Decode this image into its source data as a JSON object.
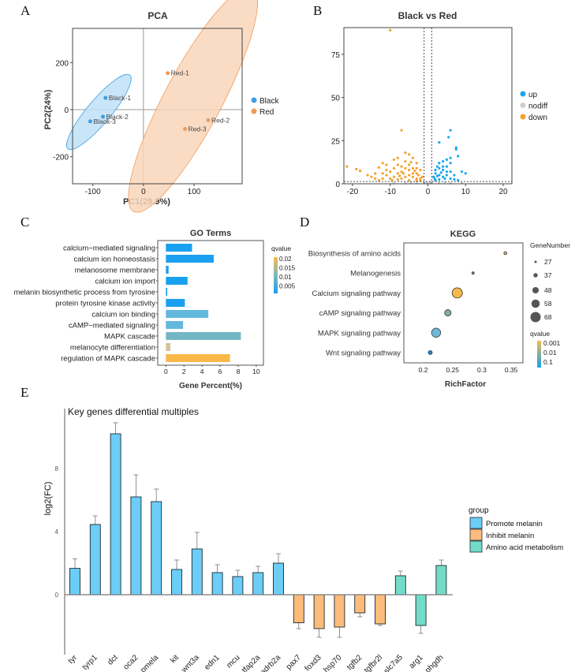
{
  "panel_labels": [
    "A",
    "B",
    "C",
    "D",
    "E"
  ],
  "chart_data": [
    {
      "type": "scatter",
      "title": "PCA",
      "xlabel": "PC1(29.9%)",
      "ylabel": "PC2(24%)",
      "xlim": [
        -140,
        195
      ],
      "ylim": [
        -315,
        345
      ],
      "xticks": [
        -100,
        0,
        100
      ],
      "yticks": [
        -200,
        0,
        200
      ],
      "legend": [
        {
          "name": "Black",
          "color": "#3e9fe0"
        },
        {
          "name": "Red",
          "color": "#f29a55"
        }
      ],
      "points": [
        {
          "label": "Black-1",
          "group": "Black",
          "x": -75,
          "y": 50
        },
        {
          "label": "Black-2",
          "group": "Black",
          "x": -80,
          "y": -30
        },
        {
          "label": "Black-3",
          "group": "Black",
          "x": -105,
          "y": -50
        },
        {
          "label": "Red-1",
          "group": "Red",
          "x": 48,
          "y": 155
        },
        {
          "label": "Red-2",
          "group": "Red",
          "x": 128,
          "y": -45
        },
        {
          "label": "Red-3",
          "group": "Red",
          "x": 82,
          "y": -82
        }
      ],
      "ellipses": [
        {
          "group": "Black",
          "cx": -88,
          "cy": -10,
          "rx": 95,
          "ry": 24,
          "angle": -50,
          "fill": "#bfe0f7"
        },
        {
          "group": "Red",
          "cx": 98,
          "cy": 42,
          "rx": 250,
          "ry": 58,
          "angle": -62,
          "fill": "#f9d6bb"
        }
      ]
    },
    {
      "type": "scatter",
      "title": "Black vs Red",
      "xlim": [
        -22.3,
        22.3
      ],
      "ylim": [
        0,
        90.5
      ],
      "xticks": [
        -20,
        -10,
        0,
        10,
        20
      ],
      "yticks": [
        0,
        25,
        50,
        75
      ],
      "thresholds": {
        "x": [
          -1,
          1
        ],
        "y": 1.3
      },
      "legend": [
        {
          "name": "up",
          "color": "#1aa7ec"
        },
        {
          "name": "nodiff",
          "color": "#d0d0d0"
        },
        {
          "name": "down",
          "color": "#f5a030"
        }
      ],
      "series": [
        {
          "name": "down",
          "points": [
            [
              -10,
              89
            ],
            [
              -7,
              31
            ],
            [
              -21.5,
              10
            ],
            [
              -19,
              8.5
            ],
            [
              -18,
              7.5
            ],
            [
              -14,
              6
            ],
            [
              -13,
              9.5
            ],
            [
              -12,
              12
            ],
            [
              -11,
              8
            ],
            [
              -9,
              14
            ],
            [
              -8,
              15
            ],
            [
              -6,
              18
            ],
            [
              -5,
              17
            ],
            [
              -4,
              15
            ],
            [
              -3,
              12
            ],
            [
              -2,
              8
            ],
            [
              -1.5,
              4
            ],
            [
              -7,
              10
            ],
            [
              -6,
              9
            ],
            [
              -5,
              11
            ],
            [
              -4,
              9
            ],
            [
              -3,
              6
            ],
            [
              -2,
              3
            ],
            [
              -8,
              6
            ],
            [
              -9,
              4
            ],
            [
              -10,
              3
            ],
            [
              -11,
              5
            ],
            [
              -12,
              3
            ],
            [
              -13,
              2
            ],
            [
              -14,
              3
            ],
            [
              -15,
              4
            ],
            [
              -6,
              4
            ],
            [
              -5,
              5
            ],
            [
              -4,
              4
            ],
            [
              -3,
              3
            ],
            [
              -7,
              3
            ],
            [
              -8,
              2.5
            ],
            [
              -5,
              2
            ],
            [
              -3,
              2
            ],
            [
              -2,
              1.8
            ],
            [
              -16,
              5
            ],
            [
              -12,
              6
            ],
            [
              -10,
              7
            ],
            [
              -7,
              7
            ],
            [
              -6,
              13
            ],
            [
              -4,
              6
            ],
            [
              -5,
              8
            ],
            [
              -3,
              9
            ],
            [
              -9,
              9
            ],
            [
              -11,
              11
            ],
            [
              -8,
              11
            ],
            [
              -4.5,
              12.5
            ],
            [
              -2.5,
              5
            ],
            [
              -6.5,
              6
            ],
            [
              -9.5,
              2
            ],
            [
              -7.5,
              4.5
            ],
            [
              -3.5,
              7.5
            ]
          ]
        },
        {
          "name": "up",
          "points": [
            [
              6,
              31
            ],
            [
              5.5,
              27
            ],
            [
              3,
              24
            ],
            [
              7.5,
              20
            ],
            [
              7.5,
              21
            ],
            [
              8,
              16
            ],
            [
              9,
              7
            ],
            [
              10,
              6
            ],
            [
              6,
              15
            ],
            [
              5,
              14
            ],
            [
              4,
              13
            ],
            [
              3,
              12
            ],
            [
              2,
              8
            ],
            [
              1.5,
              4
            ],
            [
              2,
              6
            ],
            [
              3,
              5
            ],
            [
              4,
              8
            ],
            [
              5,
              10
            ],
            [
              6,
              12
            ],
            [
              3,
              9
            ],
            [
              4,
              4
            ],
            [
              5,
              5
            ],
            [
              6,
              3
            ],
            [
              7,
              2.5
            ],
            [
              2,
              2
            ],
            [
              3,
              2.5
            ],
            [
              8,
              2
            ],
            [
              7,
              5
            ],
            [
              4,
              10
            ],
            [
              5,
              7
            ],
            [
              2.5,
              10
            ],
            [
              6,
              7
            ],
            [
              1.8,
              3
            ],
            [
              2.5,
              4.5
            ],
            [
              3.5,
              6.5
            ],
            [
              4.5,
              3
            ]
          ]
        },
        {
          "name": "nodiff",
          "points": [
            [
              -0.5,
              0.5
            ],
            [
              0.5,
              0.8
            ],
            [
              -3,
              0.5
            ],
            [
              3,
              0.5
            ],
            [
              -6,
              0.3
            ],
            [
              6,
              0.3
            ],
            [
              -1,
              1
            ],
            [
              1,
              1
            ],
            [
              0,
              0.2
            ],
            [
              -9,
              0.2
            ],
            [
              9,
              0.4
            ],
            [
              -4.5,
              0.6
            ],
            [
              4.5,
              0.6
            ]
          ]
        }
      ]
    },
    {
      "type": "bar",
      "title": "GO Terms",
      "xlabel": "Gene Percent(%)",
      "xlim": [
        -0.9,
        10.8
      ],
      "xticks": [
        0,
        2,
        4,
        6,
        8,
        10
      ],
      "legend_title": "qvalue",
      "legend_ticks": [
        "0.02",
        "0.015",
        "0.01",
        "0.005"
      ],
      "categories": [
        "calcium−mediated signaling",
        "calcium ion homeostasis",
        "melanosome membrane",
        "calcium ion import",
        "melanin biosynthetic process from tyrosine",
        "protein tyrosine kinase activity",
        "calcium ion binding",
        "cAMP−mediated signaling",
        "MAPK cascade",
        "melanocyte differentiation",
        "regulation of MAPK cascade"
      ],
      "values": [
        2.9,
        5.3,
        0.3,
        2.4,
        0.15,
        2.1,
        4.7,
        1.9,
        8.3,
        0.5,
        7.1
      ],
      "qvalues": [
        0.002,
        0.002,
        0.002,
        0.002,
        0.002,
        0.002,
        0.008,
        0.008,
        0.011,
        0.016,
        0.021
      ],
      "colors": [
        "#1aa0f0",
        "#1aa0f0",
        "#1aa0f0",
        "#1aa0f0",
        "#1aa0f0",
        "#1aa0f0",
        "#62b9dd",
        "#62b9dd",
        "#74b7c4",
        "#d6c39c",
        "#f8b84a"
      ]
    },
    {
      "type": "scatter",
      "title": "KEGG",
      "xlabel": "RichFactor",
      "xlim": [
        0.167,
        0.37
      ],
      "xticks": [
        0.2,
        0.25,
        0.3,
        0.35
      ],
      "xtick_labels": [
        "0.2",
        "0.25",
        "0.3",
        "0.35"
      ],
      "size_legend_title": "GeneNumber",
      "size_legend": [
        27,
        37,
        48,
        58,
        68
      ],
      "color_legend_title": "qvalue",
      "color_legend": [
        "0.001",
        "0.01",
        "0.1"
      ],
      "categories": [
        "Biosynthesis of amino acids",
        "Melanogenesis",
        "Calcium signaling pathway",
        "cAMP signaling pathway",
        "MAPK signaling pathway",
        "Wnt signaling pathway"
      ],
      "richfactor": [
        0.34,
        0.285,
        0.258,
        0.242,
        0.222,
        0.212
      ],
      "gene_number": [
        30,
        27,
        68,
        48,
        62,
        35
      ],
      "colors": [
        "#d9b36a",
        "#8a8a8a",
        "#f8b84a",
        "#86ada0",
        "#6cb8d8",
        "#1f86c8"
      ]
    },
    {
      "type": "bar",
      "title": "Key genes differential multiples",
      "ylabel": "log2(FC)",
      "ylim": [
        -3.8,
        11.8
      ],
      "yticks": [
        0,
        4,
        8
      ],
      "legend_title": "group",
      "groups": [
        {
          "name": "Promote melanin",
          "color": "#6ccdf7"
        },
        {
          "name": "Inhibit melanin",
          "color": "#fdbc7b"
        },
        {
          "name": "Amino acid metabolism",
          "color": "#72dcc8"
        }
      ],
      "categories": [
        "tyr",
        "tyrp1",
        "dct",
        "oca2",
        "pmela",
        "kit",
        "wnt3a",
        "edn1",
        "mcu",
        "tfap2a",
        "adrb2a",
        "pax7",
        "foxd3",
        "hsp70",
        "tgfb2",
        "tgfbr2l",
        "slc7a5",
        "arg1",
        "phgdh"
      ],
      "group_of": [
        0,
        0,
        0,
        0,
        0,
        0,
        0,
        0,
        0,
        0,
        0,
        1,
        1,
        1,
        1,
        1,
        2,
        2,
        2
      ],
      "values": [
        1.67,
        4.45,
        10.2,
        6.2,
        5.9,
        1.6,
        2.9,
        1.4,
        1.15,
        1.4,
        2.0,
        -1.78,
        -2.15,
        -2.05,
        -1.15,
        -1.85,
        1.2,
        -1.95,
        1.85
      ],
      "errors": [
        0.6,
        0.55,
        0.7,
        1.4,
        0.8,
        0.6,
        1.05,
        0.5,
        0.4,
        0.4,
        0.6,
        0.37,
        0.55,
        0.65,
        0.25,
        0.1,
        0.3,
        0.5,
        0.35
      ]
    }
  ]
}
